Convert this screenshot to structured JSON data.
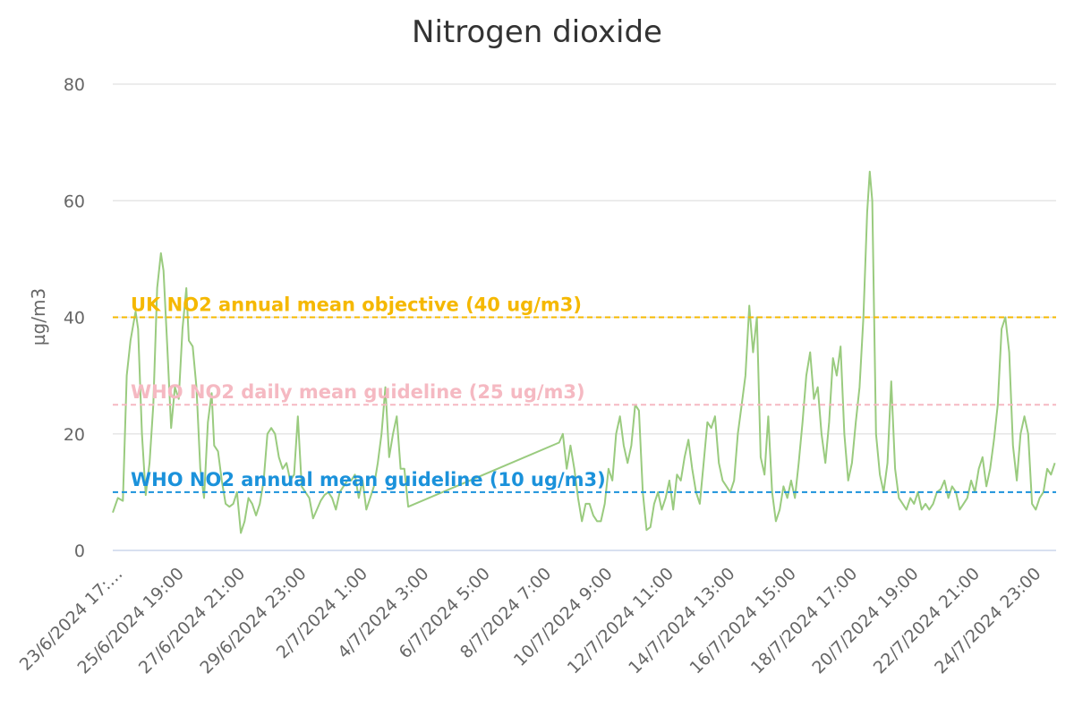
{
  "chart_data": {
    "type": "line",
    "title": "Nitrogen dioxide",
    "ylabel": "µg/m3",
    "xlabel": "",
    "ylim": [
      0,
      80
    ],
    "yticks": [
      0,
      20,
      40,
      60,
      80
    ],
    "grid": "horizontal",
    "line_color": "#9acb7f",
    "x_tick_labels": [
      "23/6/2024 17:…",
      "25/6/2024 19:00",
      "27/6/2024 21:00",
      "29/6/2024 23:00",
      "2/7/2024 1:00",
      "4/7/2024 3:00",
      "6/7/2024 5:00",
      "8/7/2024 7:00",
      "10/7/2024 9:00",
      "12/7/2024 11:00",
      "14/7/2024 13:00",
      "16/7/2024 15:00",
      "18/7/2024 17:00",
      "20/7/2024 19:00",
      "22/7/2024 21:00",
      "24/7/2024 23:00"
    ],
    "x_unit": "days after 23/6/2024 17:00",
    "series": [
      {
        "values": [
          [
            0.0,
            6.5
          ],
          [
            0.2,
            9
          ],
          [
            0.4,
            8.5
          ],
          [
            0.55,
            30
          ],
          [
            0.7,
            36
          ],
          [
            0.9,
            41
          ],
          [
            1.0,
            38
          ],
          [
            1.15,
            20
          ],
          [
            1.3,
            9.5
          ],
          [
            1.45,
            15
          ],
          [
            1.6,
            25
          ],
          [
            1.75,
            45
          ],
          [
            1.9,
            51
          ],
          [
            2.0,
            48
          ],
          [
            2.15,
            35
          ],
          [
            2.3,
            21
          ],
          [
            2.45,
            28
          ],
          [
            2.6,
            26
          ],
          [
            2.75,
            38
          ],
          [
            2.9,
            45
          ],
          [
            3.0,
            36
          ],
          [
            3.15,
            35
          ],
          [
            3.3,
            28
          ],
          [
            3.45,
            14
          ],
          [
            3.6,
            9
          ],
          [
            3.75,
            22
          ],
          [
            3.9,
            27
          ],
          [
            4.0,
            18
          ],
          [
            4.15,
            17
          ],
          [
            4.3,
            12
          ],
          [
            4.45,
            8
          ],
          [
            4.6,
            7.5
          ],
          [
            4.75,
            8
          ],
          [
            4.9,
            10
          ],
          [
            5.05,
            3
          ],
          [
            5.2,
            5
          ],
          [
            5.35,
            9
          ],
          [
            5.5,
            8
          ],
          [
            5.65,
            6
          ],
          [
            5.8,
            8
          ],
          [
            5.95,
            12
          ],
          [
            6.1,
            20
          ],
          [
            6.25,
            21
          ],
          [
            6.4,
            20
          ],
          [
            6.55,
            16
          ],
          [
            6.7,
            14
          ],
          [
            6.85,
            15
          ],
          [
            7.0,
            12
          ],
          [
            7.15,
            13
          ],
          [
            7.3,
            23
          ],
          [
            7.45,
            11
          ],
          [
            7.6,
            10
          ],
          [
            7.75,
            9
          ],
          [
            7.9,
            5.5
          ],
          [
            8.05,
            7
          ],
          [
            8.2,
            8.5
          ],
          [
            8.35,
            9.5
          ],
          [
            8.5,
            10
          ],
          [
            8.65,
            9
          ],
          [
            8.8,
            7
          ],
          [
            8.95,
            10
          ],
          [
            9.1,
            11
          ],
          [
            9.25,
            12
          ],
          [
            9.4,
            12
          ],
          [
            9.55,
            13
          ],
          [
            9.7,
            9
          ],
          [
            9.85,
            12
          ],
          [
            10.0,
            7
          ],
          [
            10.15,
            9
          ],
          [
            10.3,
            11
          ],
          [
            10.45,
            15
          ],
          [
            10.6,
            20
          ],
          [
            10.75,
            28
          ],
          [
            10.9,
            16
          ],
          [
            11.05,
            20
          ],
          [
            11.2,
            23
          ],
          [
            11.35,
            14
          ],
          [
            11.5,
            14
          ],
          [
            11.65,
            7.5
          ],
          [
            17.6,
            18.5
          ],
          [
            17.75,
            20
          ],
          [
            17.9,
            14
          ],
          [
            18.05,
            18
          ],
          [
            18.2,
            14
          ],
          [
            18.35,
            9
          ],
          [
            18.5,
            5
          ],
          [
            18.65,
            8
          ],
          [
            18.8,
            8
          ],
          [
            18.95,
            6
          ],
          [
            19.1,
            5
          ],
          [
            19.25,
            5
          ],
          [
            19.4,
            8
          ],
          [
            19.55,
            14
          ],
          [
            19.7,
            12
          ],
          [
            19.85,
            20
          ],
          [
            20.0,
            23
          ],
          [
            20.15,
            18
          ],
          [
            20.3,
            15
          ],
          [
            20.45,
            18
          ],
          [
            20.6,
            25
          ],
          [
            20.75,
            24
          ],
          [
            20.9,
            10
          ],
          [
            21.05,
            3.5
          ],
          [
            21.2,
            4
          ],
          [
            21.35,
            8
          ],
          [
            21.5,
            10
          ],
          [
            21.65,
            7
          ],
          [
            21.8,
            9
          ],
          [
            21.95,
            12
          ],
          [
            22.1,
            7
          ],
          [
            22.25,
            13
          ],
          [
            22.4,
            12
          ],
          [
            22.55,
            16
          ],
          [
            22.7,
            19
          ],
          [
            22.85,
            14
          ],
          [
            23.0,
            10
          ],
          [
            23.15,
            8
          ],
          [
            23.3,
            15
          ],
          [
            23.45,
            22
          ],
          [
            23.6,
            21
          ],
          [
            23.75,
            23
          ],
          [
            23.9,
            15
          ],
          [
            24.05,
            12
          ],
          [
            24.2,
            11
          ],
          [
            24.35,
            10
          ],
          [
            24.5,
            12
          ],
          [
            24.65,
            20
          ],
          [
            24.8,
            25
          ],
          [
            24.95,
            30
          ],
          [
            25.1,
            42
          ],
          [
            25.25,
            34
          ],
          [
            25.4,
            40
          ],
          [
            25.55,
            16
          ],
          [
            25.7,
            13
          ],
          [
            25.85,
            23
          ],
          [
            26.0,
            10
          ],
          [
            26.15,
            5
          ],
          [
            26.3,
            7
          ],
          [
            26.45,
            11
          ],
          [
            26.6,
            9
          ],
          [
            26.75,
            12
          ],
          [
            26.9,
            9
          ],
          [
            27.05,
            15
          ],
          [
            27.2,
            22
          ],
          [
            27.35,
            30
          ],
          [
            27.5,
            34
          ],
          [
            27.65,
            26
          ],
          [
            27.8,
            28
          ],
          [
            27.95,
            20
          ],
          [
            28.1,
            15
          ],
          [
            28.25,
            22
          ],
          [
            28.4,
            33
          ],
          [
            28.55,
            30
          ],
          [
            28.7,
            35
          ],
          [
            28.85,
            20
          ],
          [
            29.0,
            12
          ],
          [
            29.15,
            15
          ],
          [
            29.3,
            22
          ],
          [
            29.45,
            28
          ],
          [
            29.6,
            40
          ],
          [
            29.75,
            58
          ],
          [
            29.85,
            65
          ],
          [
            29.95,
            60
          ],
          [
            30.1,
            20
          ],
          [
            30.25,
            13
          ],
          [
            30.4,
            10
          ],
          [
            30.55,
            15
          ],
          [
            30.7,
            29
          ],
          [
            30.85,
            14
          ],
          [
            31.0,
            9
          ],
          [
            31.15,
            8
          ],
          [
            31.3,
            7
          ],
          [
            31.45,
            9
          ],
          [
            31.6,
            8
          ],
          [
            31.75,
            10
          ],
          [
            31.9,
            7
          ],
          [
            32.05,
            8
          ],
          [
            32.2,
            7
          ],
          [
            32.35,
            8
          ],
          [
            32.5,
            10
          ],
          [
            32.65,
            10.5
          ],
          [
            32.8,
            12
          ],
          [
            32.95,
            9
          ],
          [
            33.1,
            11
          ],
          [
            33.25,
            10
          ],
          [
            33.4,
            7
          ],
          [
            33.55,
            8
          ],
          [
            33.7,
            9
          ],
          [
            33.85,
            12
          ],
          [
            34.0,
            10
          ],
          [
            34.15,
            14
          ],
          [
            34.3,
            16
          ],
          [
            34.45,
            11
          ],
          [
            34.6,
            14
          ],
          [
            34.75,
            19
          ],
          [
            34.9,
            25
          ],
          [
            35.05,
            38
          ],
          [
            35.2,
            40
          ],
          [
            35.35,
            34
          ],
          [
            35.5,
            18
          ],
          [
            35.65,
            12
          ],
          [
            35.8,
            20
          ],
          [
            35.95,
            23
          ],
          [
            36.1,
            20
          ],
          [
            36.25,
            8
          ],
          [
            36.4,
            7
          ],
          [
            36.55,
            9
          ],
          [
            36.7,
            10
          ],
          [
            36.85,
            14
          ],
          [
            37.0,
            13
          ],
          [
            37.15,
            15
          ]
        ]
      }
    ],
    "plot_lines": [
      {
        "value": 40,
        "label": "UK NO2 annual mean objective (40 ug/m3)",
        "color": "#f5b800"
      },
      {
        "value": 25,
        "label": "WHO NO2 daily mean guideline (25 ug/m3)",
        "color": "#f5b9c2"
      },
      {
        "value": 10,
        "label": "WHO NO2 annual mean guideline (10 ug/m3)",
        "color": "#1b92db"
      }
    ]
  }
}
